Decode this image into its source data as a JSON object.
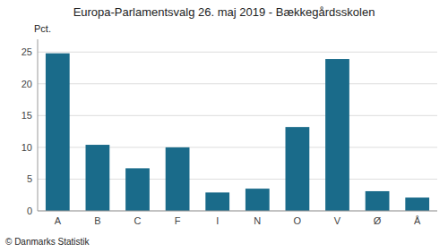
{
  "chart_data": {
    "type": "bar",
    "title": "Europa-Parlamentsvalg 26. maj 2019 - Bækkegårdsskolen",
    "categories": [
      "A",
      "B",
      "C",
      "F",
      "I",
      "N",
      "O",
      "V",
      "Ø",
      "Å"
    ],
    "values": [
      24.8,
      10.4,
      6.7,
      10.0,
      2.9,
      3.5,
      13.2,
      23.9,
      3.1,
      2.1
    ],
    "color": "#1a6b8a",
    "ylabel": "Pct.",
    "ylim": [
      0,
      27
    ],
    "yticks": [
      0,
      5,
      10,
      15,
      20,
      25
    ],
    "grid": true,
    "footer": "© Danmarks Statistik"
  }
}
